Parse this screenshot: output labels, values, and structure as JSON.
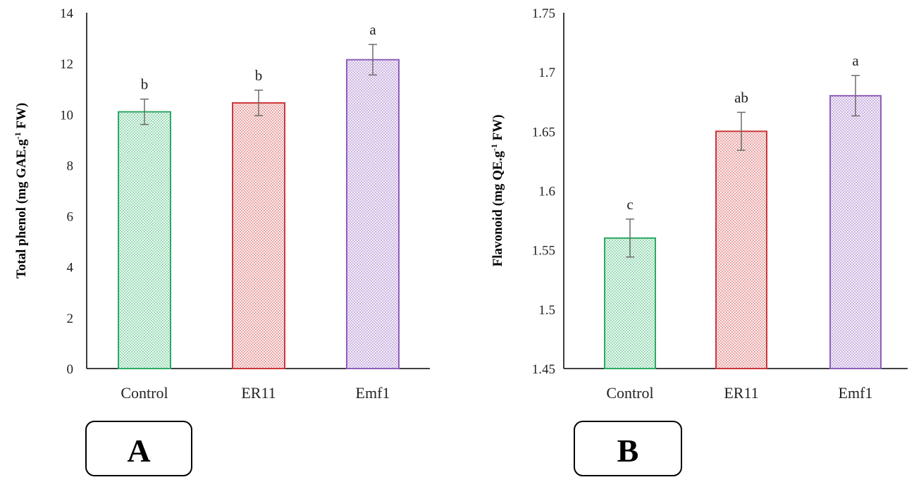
{
  "chart_data": [
    {
      "type": "bar",
      "panel_label": "A",
      "categories": [
        "Control",
        "ER11",
        "Emf1"
      ],
      "values": [
        10.1,
        10.45,
        12.15
      ],
      "errors": [
        0.5,
        0.5,
        0.6
      ],
      "significance": [
        "b",
        "b",
        "a"
      ],
      "ylabel": {
        "main": "Total phenol (mg GAE.g",
        "sup": "-1",
        "tail": " FW)"
      },
      "ylim": [
        0,
        14
      ],
      "yticks": [
        0,
        2,
        4,
        6,
        8,
        10,
        12,
        14
      ],
      "grid": false,
      "legend": "none"
    },
    {
      "type": "bar",
      "panel_label": "B",
      "categories": [
        "Control",
        "ER11",
        "Emf1"
      ],
      "values": [
        1.56,
        1.65,
        1.68
      ],
      "errors": [
        0.016,
        0.016,
        0.017
      ],
      "significance": [
        "c",
        "ab",
        "a"
      ],
      "ylabel": {
        "main": "Flavonoid (mg QE.g",
        "sup": "-1",
        "tail": " FW)"
      },
      "ylim": [
        1.45,
        1.75
      ],
      "yticks": [
        "1.45",
        "1.5",
        "1.55",
        "1.6",
        "1.65",
        "1.7",
        "1.75"
      ],
      "grid": false,
      "legend": "none"
    }
  ],
  "colors": {
    "Control": {
      "stroke": "#2ea864",
      "dot": "#3bb872",
      "fill": "#eef9f2"
    },
    "ER11": {
      "stroke": "#c9383a",
      "dot": "#d95456",
      "fill": "#fbeeee"
    },
    "Emf1": {
      "stroke": "#8e5fb8",
      "dot": "#9f74c6",
      "fill": "#f4eefa"
    }
  }
}
